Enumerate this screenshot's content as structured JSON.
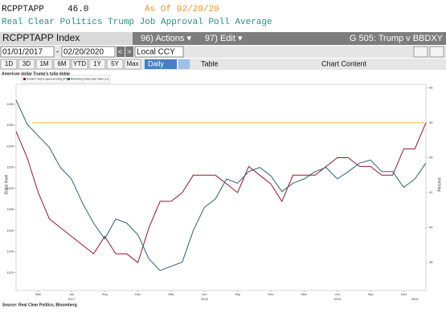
{
  "header": {
    "ticker": "RCPPTAPP",
    "last": "46.0",
    "as_of_label": "As Of",
    "as_of_date": "02/20/20",
    "description": "Real Clear Politics Trump Job Approval Poll Average"
  },
  "toolbar": {
    "security": "RCPPTAPP Index",
    "actions": "96) Actions ▾",
    "edit": "97) Edit ▾",
    "chart_name": "G 505: Trump v BBDXY",
    "start_date": "01/01/2017",
    "end_date": "02/20/2020",
    "currency": "Local CCY",
    "periods": [
      "1D",
      "3D",
      "1M",
      "6M",
      "YTD",
      "1Y",
      "5Y",
      "Max"
    ],
    "frequency": "Daily",
    "table": "Table",
    "chart_content": "Chart Content"
  },
  "chart_data": {
    "type": "line",
    "title": "American dollar Trump's tulip dollar",
    "y_label": "Dollar level",
    "y2_label": "Percent",
    "categories": [
      null,
      null,
      "Mar",
      null,
      null,
      "Jun",
      null,
      null,
      "Sep",
      null,
      null,
      "Dec",
      null,
      null,
      "Mar",
      null,
      null,
      "Jun",
      null,
      null,
      "Sep",
      null,
      null,
      "Dec",
      null,
      null,
      "Mar",
      null,
      null,
      "Jun",
      null,
      null,
      "Sep",
      null,
      null,
      "Dec",
      null,
      null
    ],
    "years": [
      "2017",
      "2018",
      "2019",
      "2020"
    ],
    "series": [
      {
        "name": "Donald Trump's approval rating (R1)",
        "color": "#8b1a2b",
        "axis": "y2",
        "values": [
          45.5,
          44,
          42,
          40.5,
          40,
          39.5,
          39,
          38.5,
          39.5,
          38.5,
          38.5,
          38,
          40,
          41.5,
          41.5,
          42,
          43,
          43,
          43,
          42.5,
          42,
          43.5,
          43,
          42.5,
          41.5,
          43,
          43,
          43,
          43.5,
          44,
          44,
          43.5,
          43.5,
          43,
          43,
          44.5,
          44.5,
          46
        ]
      },
      {
        "name": "Bloomberg Dollar Spot Index (L1)",
        "color": "#2f5f7a",
        "values": [
          1284,
          1261,
          1250,
          1239,
          1220,
          1209,
          1186,
          1167,
          1152,
          1171,
          1167,
          1156,
          1133,
          1122,
          1126,
          1130,
          1160,
          1182,
          1190,
          1209,
          1205,
          1216,
          1220,
          1212,
          1197,
          1205,
          1209,
          1216,
          1220,
          1209,
          1216,
          1224,
          1227,
          1216,
          1216,
          1201,
          1209,
          1224
        ]
      }
    ],
    "reference_line": {
      "value": 46,
      "color": "#f5a623",
      "axis": "y2"
    },
    "ylim": [
      1103,
      1299
    ],
    "yticks": [
      1120,
      1140,
      1160,
      1180,
      1200,
      1220,
      1240,
      1260,
      1280
    ],
    "y2lim": [
      36.4,
      48.2
    ],
    "y2ticks": [
      38,
      40,
      42,
      44,
      46,
      48
    ],
    "source": "Source: Real Clear Politics, Bloomberg"
  }
}
